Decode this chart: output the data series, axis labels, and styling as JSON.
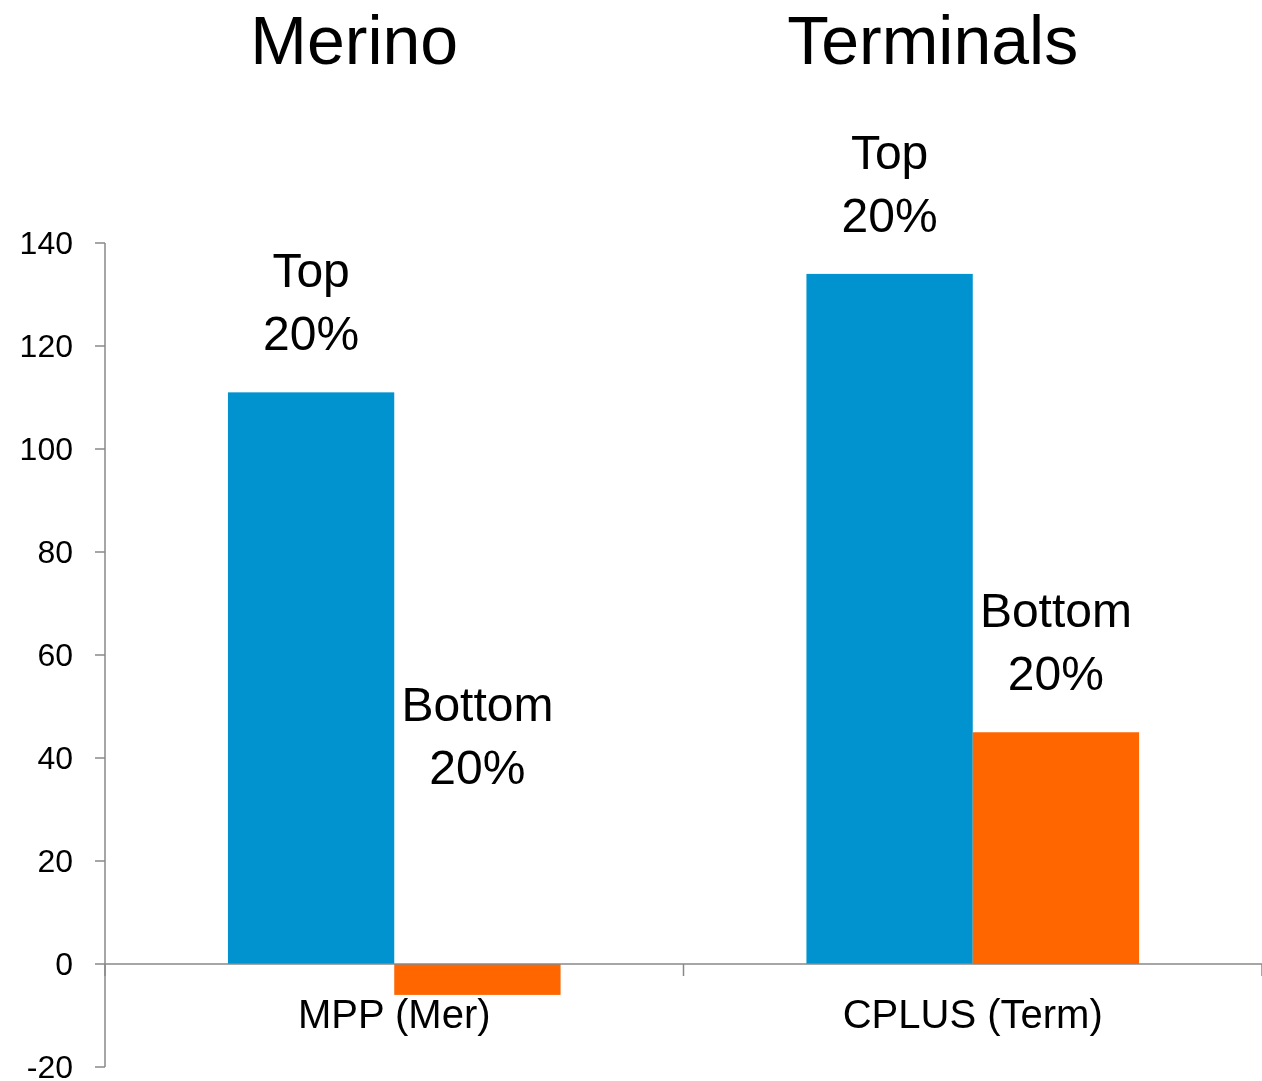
{
  "chart_data": {
    "type": "bar",
    "categories": [
      "MPP (Mer)",
      "CPLUS (Term)"
    ],
    "series": [
      {
        "name": "Top 20%",
        "color": "#0093cf",
        "values": [
          111,
          134
        ]
      },
      {
        "name": "Bottom 20%",
        "color": "#ff6600",
        "values": [
          -6,
          45
        ]
      }
    ],
    "ylim": [
      -20,
      140
    ],
    "yticks": [
      -20,
      0,
      20,
      40,
      60,
      80,
      100,
      120,
      140
    ],
    "grid": false,
    "annotations": [
      "Merino",
      "Terminals"
    ]
  }
}
